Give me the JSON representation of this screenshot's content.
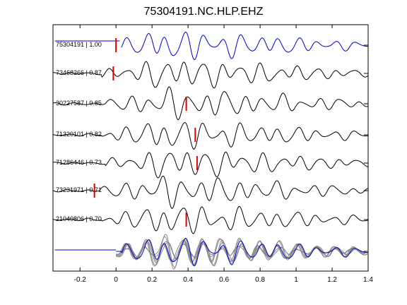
{
  "chart_data": {
    "type": "line",
    "title": "75304191.NC.HLP.EHZ",
    "xlabel": "",
    "ylabel": "",
    "xlim": [
      -0.35,
      1.4
    ],
    "xticks": [
      -0.2,
      0,
      0.2,
      0.4,
      0.6,
      0.8,
      1,
      1.2,
      1.4
    ],
    "xtick_labels": [
      "-0.2",
      "0",
      "0.2",
      "0.4",
      "0.6",
      "0.8",
      "1",
      "1.2",
      "1.4"
    ],
    "grid": false,
    "colors": {
      "reference": "#0000cc",
      "correlated": "#000000",
      "pick": "#dd0000",
      "overlay": "#888888"
    },
    "traces": [
      {
        "label": "75304191 | 1.00",
        "id": "75304191",
        "cc": 1.0,
        "pick_time": 0.0,
        "color": "#0000cc"
      },
      {
        "label": "73468266 | 0.87",
        "id": "73468266",
        "cc": 0.87,
        "pick_time": -0.015,
        "color": "#000000"
      },
      {
        "label": "30227587 | 0.85",
        "id": "30227587",
        "cc": 0.85,
        "pick_time": 0.39,
        "color": "#000000"
      },
      {
        "label": "71320101 | 0.82",
        "id": "71320101",
        "cc": 0.82,
        "pick_time": 0.44,
        "color": "#000000"
      },
      {
        "label": "71286446 | 0.73",
        "id": "71286446",
        "cc": 0.73,
        "pick_time": 0.45,
        "color": "#000000"
      },
      {
        "label": "73231971 | 0.71",
        "id": "73231971",
        "cc": 0.71,
        "pick_time": -0.12,
        "color": "#000000"
      },
      {
        "label": "21040806 | 0.70",
        "id": "21040806",
        "cc": 0.7,
        "pick_time": 0.39,
        "color": "#000000"
      }
    ]
  }
}
